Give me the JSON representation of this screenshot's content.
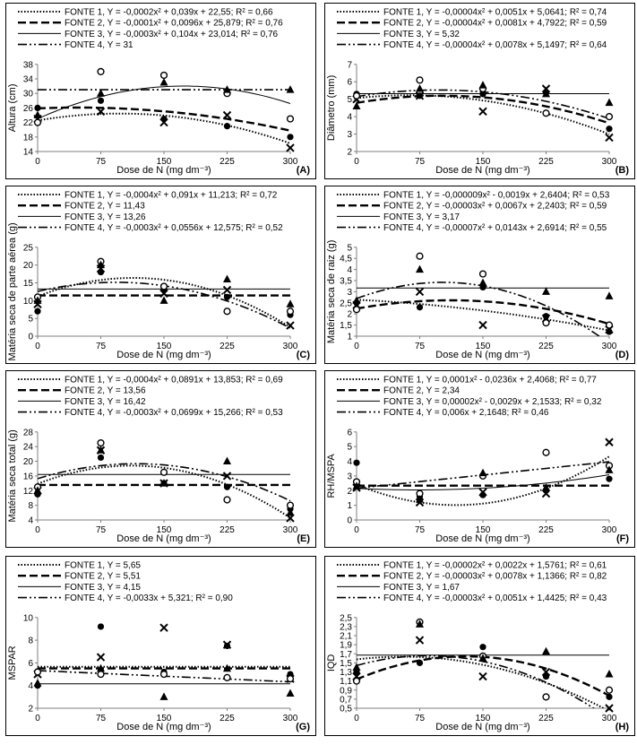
{
  "panels": [
    {
      "id": "A",
      "ylabel": "Altura (cm)",
      "xlabel": "Dose de N (mg dm⁻³)",
      "letter": "(A)",
      "legend_entries": [
        "FONTE 1, Y = -0,0002x² + 0,039x + 22,55; R² = 0,66",
        "FONTE 2, Y = -0,0001x² + 0,0096x + 25,879; R² = 0,76",
        "FONTE 3, Y = -0,0003x² + 0,104x + 23,014; R² = 0,76",
        "FONTE 4, Y = 31"
      ]
    },
    {
      "id": "B",
      "ylabel": "Diâmetro (mm)",
      "xlabel": "Dose de N (mg dm⁻³)",
      "letter": "(B)",
      "legend_entries": [
        "FONTE 1, Y = -0,00004x² + 0,0051x + 5,0641; R² = 0,74",
        "FONTE 2, Y = -0,00004x² + 0,0081x + 4,7922; R² = 0,59",
        "FONTE 3, Y = 5,32",
        "FONTE 4, Y = -0,00004x² + 0,0078x + 5,1497; R² = 0,64"
      ]
    },
    {
      "id": "C",
      "ylabel": "Matéria seca de parte aérea (g)",
      "xlabel": "Dose de N (mg dm⁻³)",
      "letter": "(C)",
      "legend_entries": [
        "FONTE 1, Y = -0,0004x² + 0,091x + 11,213; R² = 0,72",
        "FONTE 2, Y = 11,43",
        "FONTE 3, Y = 13,26",
        "FONTE 4, Y = -0,0003x² + 0,0556x + 12,575; R² = 0,52"
      ]
    },
    {
      "id": "D",
      "ylabel": "Matéria seca de raiz (g)",
      "xlabel": "Dose de N (mg dm⁻³)",
      "letter": "(D)",
      "legend_entries": [
        "FONTE 1, Y = -0,000009x² - 0,0019x + 2,6404; R² = 0,53",
        "FONTE 2, Y = -0,00003x² + 0,0067x + 2,2403; R² = 0,59",
        "FONTE 3, Y = 3,17",
        "FONTE 4, Y = -0,00007x² + 0,0143x + 2,6914; R² = 0,55"
      ]
    },
    {
      "id": "E",
      "ylabel": "Matéria seca total (g)",
      "xlabel": "Dose de N (mg dm⁻³)",
      "letter": "(E)",
      "legend_entries": [
        "FONTE 1, Y = -0,0004x² + 0,0891x + 13,853; R² = 0,69",
        "FONTE 2, Y = 13,56",
        "FONTE 3, Y = 16,42",
        "FONTE 4, Y = -0,0003x² + 0,0699x + 15,266; R² = 0,53"
      ]
    },
    {
      "id": "F",
      "ylabel": "RH/MSPA",
      "xlabel": "Dose de N (mg dm⁻³)",
      "letter": "(F)",
      "legend_entries": [
        "FONTE 1, Y = 0,0001x² - 0,0236x + 2,4068; R² = 0,77",
        "FONTE 2, Y = 2,34",
        "FONTE 3, Y = 0,00002x² - 0,0029x + 2,1533; R² = 0,32",
        "FONTE 4, Y = 0,006x + 2,1648; R² = 0,46"
      ]
    },
    {
      "id": "G",
      "ylabel": "MSPAR",
      "xlabel": "Dose de N (mg dm⁻³)",
      "letter": "(G)",
      "legend_entries": [
        "FONTE 1, Y = 5,65",
        "FONTE 2, Y = 5,51",
        "FONTE 3, Y = 4,15",
        "FONTE 4, Y = -0,0033x + 5,321; R² = 0,90"
      ]
    },
    {
      "id": "H",
      "ylabel": "IQD",
      "xlabel": "Dose de N (mg dm⁻³)",
      "letter": "(H)",
      "legend_entries": [
        "FONTE 1, Y = -0,00002x² + 0,0022x + 1,5761; R² = 0,61",
        "FONTE 2, Y = -0,00003x² + 0,0078x + 1,1366; R² = 0,82",
        "FONTE 3, Y = 1,67",
        "FONTE 4, Y = -0,00003x² + 0,0051x + 1,4425; R² = 0,43"
      ]
    }
  ],
  "chart_data": [
    {
      "type": "scatter",
      "id": "A",
      "xlabel": "Dose de N (mg dm⁻³)",
      "ylabel": "Altura (cm)",
      "x": [
        0,
        75,
        150,
        225,
        300
      ],
      "xticks": [
        0,
        75,
        150,
        225,
        300
      ],
      "ylim": [
        14,
        38
      ],
      "yticks": [
        14,
        18,
        22,
        26,
        30,
        34,
        38
      ],
      "series": [
        {
          "name": "FONTE 1",
          "marker": "circle-filled",
          "line": "dotted",
          "coef": [
            22.55,
            0.039,
            -0.0002
          ],
          "values": [
            26,
            28,
            23,
            21,
            18
          ]
        },
        {
          "name": "FONTE 2",
          "marker": "x",
          "line": "dashed",
          "coef": [
            25.879,
            0.0096,
            -0.0001
          ],
          "values": [
            23,
            25,
            22,
            24,
            15
          ]
        },
        {
          "name": "FONTE 3",
          "marker": "circle-open",
          "line": "solid",
          "coef": [
            23.014,
            0.104,
            -0.0003
          ],
          "values": [
            22,
            36,
            35,
            30,
            23
          ]
        },
        {
          "name": "FONTE 4",
          "marker": "triangle",
          "line": "dashdotdot",
          "coef": [
            31,
            0,
            0
          ],
          "values": [
            24,
            30,
            33,
            31,
            31
          ]
        }
      ]
    },
    {
      "type": "scatter",
      "id": "B",
      "xlabel": "Dose de N (mg dm⁻³)",
      "ylabel": "Diâmetro (mm)",
      "x": [
        0,
        75,
        150,
        225,
        300
      ],
      "xticks": [
        0,
        75,
        150,
        225,
        300
      ],
      "ylim": [
        2,
        7
      ],
      "yticks": [
        2,
        3,
        4,
        5,
        6,
        7
      ],
      "series": [
        {
          "name": "FONTE 1",
          "marker": "circle-filled",
          "line": "dotted",
          "coef": [
            5.0641,
            0.0051,
            -4e-05
          ],
          "values": [
            5.3,
            5.2,
            5.3,
            5.4,
            3.3
          ]
        },
        {
          "name": "FONTE 2",
          "marker": "x",
          "line": "dashed",
          "coef": [
            4.7922,
            0.0081,
            -4e-05
          ],
          "values": [
            5.0,
            5.2,
            4.3,
            5.6,
            2.8
          ]
        },
        {
          "name": "FONTE 3",
          "marker": "circle-open",
          "line": "solid",
          "coef": [
            5.32,
            0,
            0
          ],
          "values": [
            5.2,
            6.1,
            5.6,
            4.2,
            4.0
          ]
        },
        {
          "name": "FONTE 4",
          "marker": "triangle",
          "line": "dashdotdot",
          "coef": [
            5.1497,
            0.0078,
            -4e-05
          ],
          "values": [
            4.6,
            5.6,
            5.8,
            5.3,
            4.8
          ]
        }
      ]
    },
    {
      "type": "scatter",
      "id": "C",
      "xlabel": "Dose de N (mg dm⁻³)",
      "ylabel": "Matéria seca de parte aérea (g)",
      "x": [
        0,
        75,
        150,
        225,
        300
      ],
      "xticks": [
        0,
        75,
        150,
        225,
        300
      ],
      "ylim": [
        0,
        25
      ],
      "yticks": [
        0,
        5,
        10,
        15,
        20,
        25
      ],
      "series": [
        {
          "name": "FONTE 1",
          "marker": "circle-filled",
          "line": "dotted",
          "coef": [
            11.213,
            0.091,
            -0.0004
          ],
          "values": [
            7,
            18,
            13,
            11,
            6
          ]
        },
        {
          "name": "FONTE 2",
          "marker": "x",
          "line": "dashed",
          "coef": [
            11.43,
            0,
            0
          ],
          "values": [
            9,
            19,
            12,
            13,
            3
          ]
        },
        {
          "name": "FONTE 3",
          "marker": "circle-open",
          "line": "solid",
          "coef": [
            13.26,
            0,
            0
          ],
          "values": [
            11,
            21,
            14,
            7,
            7
          ]
        },
        {
          "name": "FONTE 4",
          "marker": "triangle",
          "line": "dashdotdot",
          "coef": [
            12.575,
            0.0556,
            -0.0003
          ],
          "values": [
            10,
            20,
            10,
            16,
            9
          ]
        }
      ]
    },
    {
      "type": "scatter",
      "id": "D",
      "xlabel": "Dose de N (mg dm⁻³)",
      "ylabel": "Matéria seca de raiz (g)",
      "x": [
        0,
        75,
        150,
        225,
        300
      ],
      "xticks": [
        0,
        75,
        150,
        225,
        300
      ],
      "ylim": [
        1,
        5
      ],
      "yticks": [
        1,
        1.5,
        2,
        2.5,
        3,
        3.5,
        4,
        4.5,
        5
      ],
      "series": [
        {
          "name": "FONTE 1",
          "marker": "circle-filled",
          "line": "dotted",
          "coef": [
            2.6404,
            -0.0019,
            -9e-06
          ],
          "values": [
            2.5,
            2.3,
            3.2,
            1.9,
            1.2
          ]
        },
        {
          "name": "FONTE 2",
          "marker": "x",
          "line": "dashed",
          "coef": [
            2.2403,
            0.0067,
            -3e-05
          ],
          "values": [
            2.4,
            3.0,
            1.5,
            1.8,
            1.3
          ]
        },
        {
          "name": "FONTE 3",
          "marker": "circle-open",
          "line": "solid",
          "coef": [
            3.17,
            0,
            0
          ],
          "values": [
            2.2,
            4.6,
            3.8,
            1.6,
            1.5
          ]
        },
        {
          "name": "FONTE 4",
          "marker": "triangle",
          "line": "dashdotdot",
          "coef": [
            2.6914,
            0.0143,
            -7e-05
          ],
          "values": [
            2.6,
            4.0,
            3.4,
            3.0,
            2.8
          ]
        }
      ]
    },
    {
      "type": "scatter",
      "id": "E",
      "xlabel": "Dose de N (mg dm⁻³)",
      "ylabel": "Matéria seca total (g)",
      "x": [
        0,
        75,
        150,
        225,
        300
      ],
      "xticks": [
        0,
        75,
        150,
        225,
        300
      ],
      "ylim": [
        4,
        28
      ],
      "yticks": [
        4,
        8,
        12,
        16,
        20,
        24,
        28
      ],
      "series": [
        {
          "name": "FONTE 1",
          "marker": "circle-filled",
          "line": "dotted",
          "coef": [
            13.853,
            0.0891,
            -0.0004
          ],
          "values": [
            11,
            21,
            14,
            13,
            7
          ]
        },
        {
          "name": "FONTE 2",
          "marker": "x",
          "line": "dashed",
          "coef": [
            13.56,
            0,
            0
          ],
          "values": [
            12,
            23,
            14,
            16,
            4.5
          ]
        },
        {
          "name": "FONTE 3",
          "marker": "circle-open",
          "line": "solid",
          "coef": [
            16.42,
            0,
            0
          ],
          "values": [
            13,
            25,
            17,
            9.5,
            8
          ]
        },
        {
          "name": "FONTE 4",
          "marker": "triangle",
          "line": "dashdotdot",
          "coef": [
            15.266,
            0.0699,
            -0.0003
          ],
          "values": [
            12,
            23,
            14,
            20,
            6
          ]
        }
      ]
    },
    {
      "type": "scatter",
      "id": "F",
      "xlabel": "Dose de N (mg dm⁻³)",
      "ylabel": "RH/MSPA",
      "x": [
        0,
        75,
        150,
        225,
        300
      ],
      "xticks": [
        0,
        75,
        150,
        225,
        300
      ],
      "ylim": [
        0,
        6
      ],
      "yticks": [
        0,
        1,
        2,
        3,
        4,
        5,
        6
      ],
      "series": [
        {
          "name": "FONTE 1",
          "marker": "circle-filled",
          "line": "dotted",
          "coef": [
            2.4068,
            -0.0236,
            0.0001
          ],
          "values": [
            3.9,
            1.6,
            1.7,
            2.0,
            2.8
          ]
        },
        {
          "name": "FONTE 2",
          "marker": "x",
          "line": "dashed",
          "coef": [
            2.34,
            0,
            0
          ],
          "values": [
            2.2,
            1.2,
            1.9,
            1.8,
            5.3
          ]
        },
        {
          "name": "FONTE 3",
          "marker": "circle-open",
          "line": "solid",
          "coef": [
            2.1533,
            -0.0029,
            2e-05
          ],
          "values": [
            2.6,
            1.8,
            3.0,
            4.6,
            3.7
          ]
        },
        {
          "name": "FONTE 4",
          "marker": "triangle",
          "line": "dashdotdot",
          "coef": [
            2.1648,
            0.006,
            0
          ],
          "values": [
            2.3,
            1.4,
            3.2,
            2.2,
            3.4
          ]
        }
      ]
    },
    {
      "type": "scatter",
      "id": "G",
      "xlabel": "Dose de N (mg dm⁻³)",
      "ylabel": "MSPAR",
      "x": [
        0,
        75,
        150,
        225,
        300
      ],
      "xticks": [
        0,
        75,
        150,
        225,
        300
      ],
      "ylim": [
        2,
        10
      ],
      "yticks": [
        2,
        4,
        6,
        8,
        10
      ],
      "series": [
        {
          "name": "FONTE 1",
          "marker": "circle-filled",
          "line": "dotted",
          "coef": [
            5.65,
            0,
            0
          ],
          "values": [
            4.0,
            9.2,
            5.2,
            7.5,
            5.0
          ]
        },
        {
          "name": "FONTE 2",
          "marker": "x",
          "line": "dashed",
          "coef": [
            5.51,
            0,
            0
          ],
          "values": [
            5.0,
            6.5,
            9.1,
            7.6,
            4.6
          ]
        },
        {
          "name": "FONTE 3",
          "marker": "circle-open",
          "line": "solid",
          "coef": [
            4.15,
            0,
            0
          ],
          "values": [
            5.2,
            5.0,
            5.0,
            4.7,
            4.6
          ]
        },
        {
          "name": "FONTE 4",
          "marker": "triangle",
          "line": "dashdotdot",
          "coef": [
            5.321,
            -0.0033,
            0
          ],
          "values": [
            4.2,
            5.5,
            3.0,
            5.5,
            3.3
          ]
        }
      ]
    },
    {
      "type": "scatter",
      "id": "H",
      "xlabel": "Dose de N (mg dm⁻³)",
      "ylabel": "IQD",
      "x": [
        0,
        75,
        150,
        225,
        300
      ],
      "xticks": [
        0,
        75,
        150,
        225,
        300
      ],
      "ylim": [
        0.5,
        2.5
      ],
      "yticks": [
        0.5,
        0.7,
        0.9,
        1.1,
        1.3,
        1.5,
        1.7,
        1.9,
        2.1,
        2.3,
        2.5
      ],
      "ytick_labels": [
        "0,5",
        "0,7",
        "0,9",
        "1,1",
        "1,3",
        "1,5",
        "1,7",
        "1,9",
        "2,1",
        "2,3",
        "2,5"
      ],
      "series": [
        {
          "name": "FONTE 1",
          "marker": "circle-filled",
          "line": "dotted",
          "coef": [
            1.5761,
            0.0022,
            -2e-05
          ],
          "values": [
            1.3,
            1.5,
            1.85,
            1.2,
            0.75
          ]
        },
        {
          "name": "FONTE 2",
          "marker": "x",
          "line": "dashed",
          "coef": [
            1.1366,
            0.0078,
            -3e-05
          ],
          "values": [
            1.2,
            2.0,
            1.2,
            1.3,
            0.5
          ]
        },
        {
          "name": "FONTE 3",
          "marker": "circle-open",
          "line": "solid",
          "coef": [
            1.67,
            0,
            0
          ],
          "values": [
            1.1,
            2.4,
            1.65,
            0.75,
            0.9
          ]
        },
        {
          "name": "FONTE 4",
          "marker": "triangle",
          "line": "dashdotdot",
          "coef": [
            1.4425,
            0.0051,
            -3e-05
          ],
          "values": [
            1.4,
            2.35,
            1.6,
            1.75,
            1.25
          ]
        }
      ]
    }
  ]
}
